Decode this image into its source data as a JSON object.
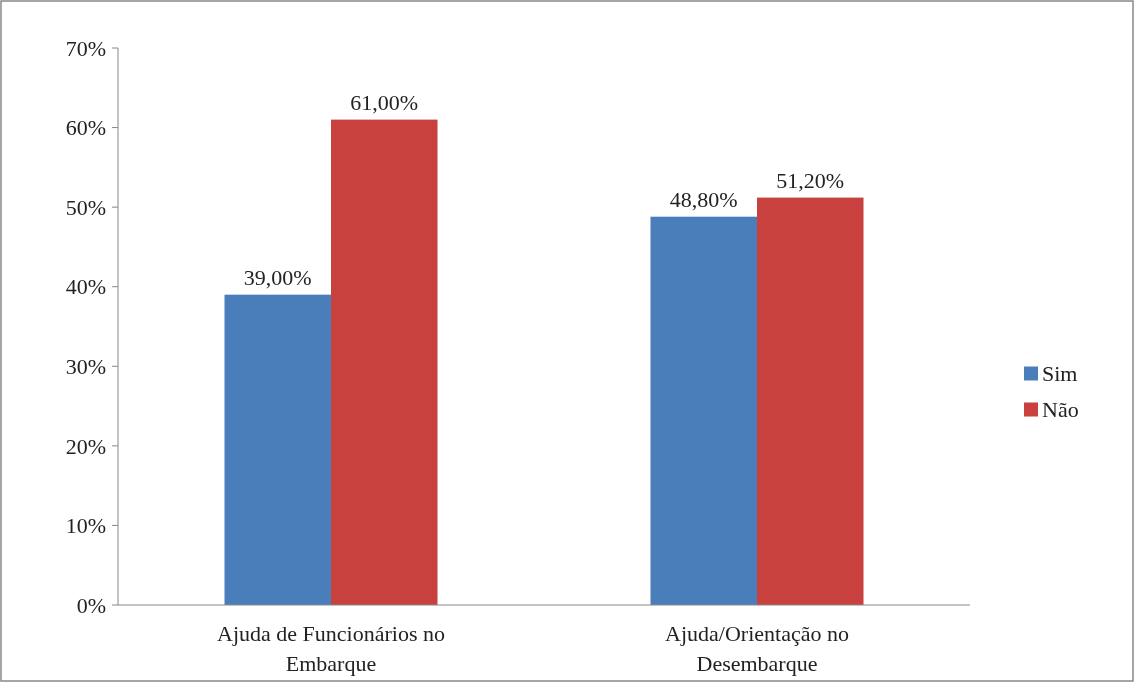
{
  "chart_data": {
    "type": "bar",
    "categories": [
      "Ajuda de Funcionários no Embarque",
      "Ajuda/Orientação no Desembarque"
    ],
    "series": [
      {
        "name": "Sim",
        "color": "#4a7ebb",
        "values": [
          39,
          48.8
        ],
        "value_labels": [
          "39,00%",
          "48,80%"
        ]
      },
      {
        "name": "Não",
        "color": "#c8413e",
        "values": [
          61,
          51.2
        ],
        "value_labels": [
          "61,00%",
          "51,20%"
        ]
      }
    ],
    "ylim": [
      0,
      70
    ],
    "yticks": [
      {
        "value": 0,
        "label": "0%"
      },
      {
        "value": 10,
        "label": "10%"
      },
      {
        "value": 20,
        "label": "20%"
      },
      {
        "value": 30,
        "label": "30%"
      },
      {
        "value": 40,
        "label": "40%"
      },
      {
        "value": 50,
        "label": "50%"
      },
      {
        "value": 60,
        "label": "60%"
      },
      {
        "value": 70,
        "label": "70%"
      }
    ],
    "grid": false,
    "legend": "right"
  }
}
